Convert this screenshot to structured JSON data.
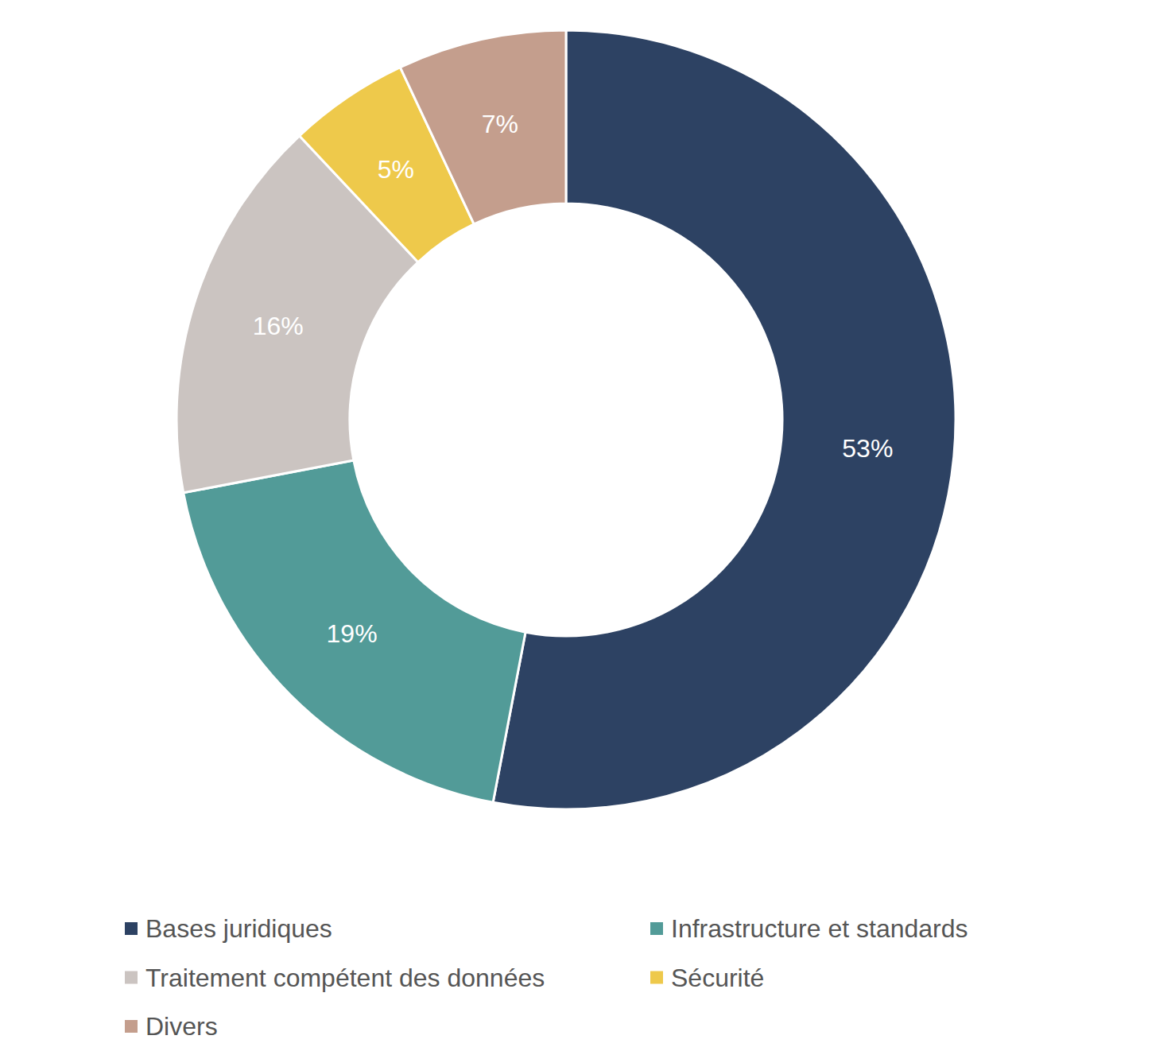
{
  "chart_data": {
    "type": "pie",
    "categories": [
      "Bases juridiques",
      "Infrastructure et standards",
      "Traitement compétent des données",
      "Sécurité",
      "Divers"
    ],
    "values": [
      53,
      19,
      16,
      5,
      7
    ],
    "value_labels": [
      "53%",
      "19%",
      "16%",
      "5%",
      "7%"
    ],
    "colors": [
      "#2d4263",
      "#529b98",
      "#cbc4c1",
      "#eec94b",
      "#c49e8d"
    ],
    "data_labels": true,
    "legend": "bottom"
  }
}
